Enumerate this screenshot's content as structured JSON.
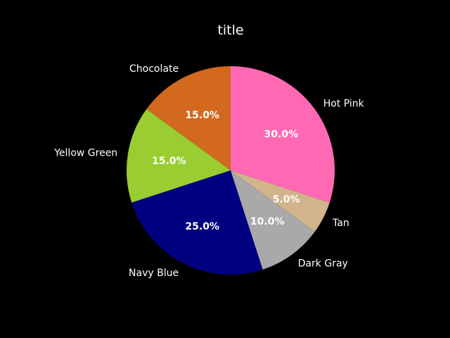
{
  "chart_data": {
    "type": "pie",
    "title": "title",
    "categories": [
      "Chocolate",
      "Yellow Green",
      "Navy Blue",
      "Dark Gray",
      "Tan",
      "Hot Pink"
    ],
    "values": [
      15.0,
      15.0,
      25.0,
      10.0,
      5.0,
      30.0
    ],
    "value_labels": [
      "15.0%",
      "15.0%",
      "25.0%",
      "10.0%",
      "5.0%",
      "30.0%"
    ],
    "colors": [
      "#D2691E",
      "#9ACD32",
      "#000080",
      "#A9A9A9",
      "#D2B48C",
      "#FF69B4"
    ],
    "start_angle_deg": 90,
    "direction": "counterclockwise",
    "background": "#000000",
    "text_color": "#ffffff"
  }
}
